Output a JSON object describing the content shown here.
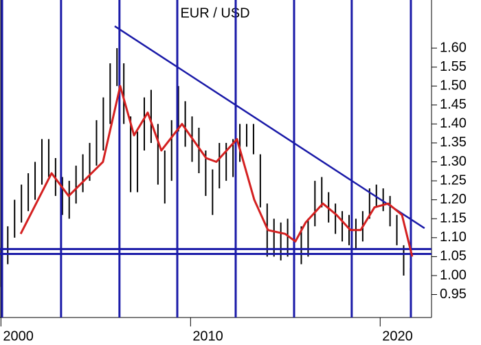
{
  "chart_data": {
    "type": "hilo",
    "title": "EUR / USD",
    "color": "#000000",
    "x": [
      2000.0,
      2000.36,
      2000.72,
      2001.08,
      2001.44,
      2001.8,
      2002.16,
      2002.52,
      2002.88,
      2003.24,
      2003.6,
      2003.96,
      2004.32,
      2004.68,
      2005.04,
      2005.4,
      2005.76,
      2006.12,
      2006.48,
      2006.84,
      2007.2,
      2007.56,
      2007.92,
      2008.28,
      2008.64,
      2009.0,
      2009.36,
      2009.72,
      2010.08,
      2010.44,
      2010.8,
      2011.16,
      2011.52,
      2011.88,
      2012.24,
      2012.6,
      2012.96,
      2013.32,
      2013.68,
      2014.04,
      2014.4,
      2014.76,
      2015.12,
      2015.48,
      2015.84,
      2016.2,
      2016.56,
      2016.92,
      2017.28,
      2017.64,
      2018.0,
      2018.36,
      2018.72,
      2019.08,
      2019.44,
      2019.8,
      2020.16,
      2020.52,
      2020.88,
      2021.24,
      2021.6
    ],
    "high": [
      1.07,
      1.13,
      1.2,
      1.24,
      1.27,
      1.3,
      1.36,
      1.36,
      1.31,
      1.26,
      1.25,
      1.29,
      1.32,
      1.35,
      1.41,
      1.47,
      1.56,
      1.6,
      1.56,
      1.42,
      1.38,
      1.47,
      1.49,
      1.4,
      1.33,
      1.41,
      1.5,
      1.46,
      1.42,
      1.39,
      1.33,
      1.28,
      1.35,
      1.35,
      1.36,
      1.4,
      1.4,
      1.4,
      1.32,
      1.19,
      1.15,
      1.14,
      1.15,
      1.14,
      1.13,
      1.15,
      1.25,
      1.26,
      1.22,
      1.19,
      1.17,
      1.16,
      1.15,
      1.17,
      1.23,
      1.24,
      1.23,
      1.21,
      1.16,
      1.08,
      1.02
    ],
    "low": [
      0.97,
      1.03,
      1.1,
      1.14,
      1.17,
      1.2,
      1.24,
      1.26,
      1.21,
      1.16,
      1.15,
      1.19,
      1.22,
      1.25,
      1.29,
      1.33,
      1.4,
      1.5,
      1.4,
      1.22,
      1.22,
      1.33,
      1.35,
      1.24,
      1.19,
      1.25,
      1.38,
      1.34,
      1.3,
      1.27,
      1.21,
      1.16,
      1.23,
      1.25,
      1.26,
      1.3,
      1.34,
      1.32,
      1.18,
      1.05,
      1.05,
      1.04,
      1.05,
      1.04,
      1.03,
      1.05,
      1.13,
      1.18,
      1.14,
      1.11,
      1.09,
      1.08,
      1.07,
      1.09,
      1.15,
      1.18,
      1.17,
      1.13,
      1.08,
      1.0,
      0.96
    ],
    "moving_average": {
      "color": "#d42020",
      "x": [
        2001.04,
        2002.67,
        2003.57,
        2005.38,
        2006.29,
        2007.02,
        2007.74,
        2008.46,
        2009.55,
        2010.82,
        2011.36,
        2012.45,
        2013.36,
        2014.08,
        2014.99,
        2015.53,
        2016.07,
        2016.98,
        2017.7,
        2018.43,
        2018.97,
        2019.7,
        2020.42,
        2021.15,
        2021.69
      ],
      "values": [
        1.11,
        1.27,
        1.21,
        1.3,
        1.5,
        1.37,
        1.43,
        1.33,
        1.4,
        1.31,
        1.3,
        1.36,
        1.2,
        1.12,
        1.11,
        1.09,
        1.14,
        1.19,
        1.16,
        1.12,
        1.12,
        1.18,
        1.19,
        1.16,
        1.05
      ]
    },
    "cycle_lines": {
      "color": "#1a1aa8",
      "x": [
        2000.06,
        2003.17,
        2006.25,
        2009.3,
        2012.38,
        2015.46,
        2018.5,
        2021.62
      ]
    },
    "trend_line": {
      "color": "#1a1aa8",
      "x": [
        2006.0,
        2022.34
      ],
      "values": [
        1.658,
        1.125
      ]
    },
    "support_lines": {
      "color": "#1a1aa8",
      "values": [
        1.07,
        1.057
      ]
    },
    "xlim": [
      1999.95,
      2022.6
    ],
    "xticks": [
      2000,
      2010,
      2020
    ],
    "ylim": [
      0.893,
      1.727
    ],
    "yticks": [
      {
        "value": 0.95,
        "label": "0.95"
      },
      {
        "value": 1,
        "label": "1.00"
      },
      {
        "value": 1.05,
        "label": "1.05"
      },
      {
        "value": 1.1,
        "label": "1.10"
      },
      {
        "value": 1.15,
        "label": "1.15"
      },
      {
        "value": 1.2,
        "label": "1.20"
      },
      {
        "value": 1.25,
        "label": "1.25"
      },
      {
        "value": 1.3,
        "label": "1.30"
      },
      {
        "value": 1.35,
        "label": "1.35"
      },
      {
        "value": 1.4,
        "label": "1.40"
      },
      {
        "value": 1.45,
        "label": "1.45"
      },
      {
        "value": 1.5,
        "label": "1.50"
      },
      {
        "value": 1.55,
        "label": "1.55"
      },
      {
        "value": 1.6,
        "label": "1.60"
      }
    ]
  }
}
